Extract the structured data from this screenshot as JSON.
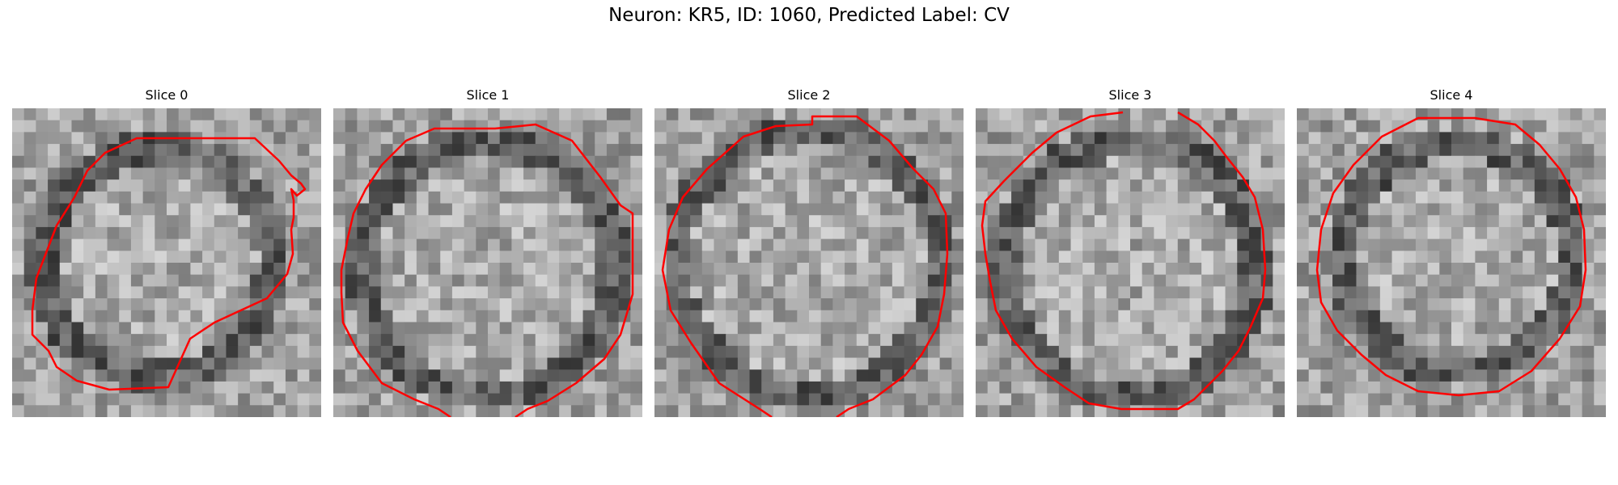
{
  "figure": {
    "title": "Neuron: KR5, ID: 1060, Predicted Label: CV"
  },
  "panels": [
    {
      "title": "Slice 0"
    },
    {
      "title": "Slice 1"
    },
    {
      "title": "Slice 2"
    },
    {
      "title": "Slice 3"
    },
    {
      "title": "Slice 4"
    }
  ],
  "colors": {
    "contour": "#ff0000",
    "background": "#ffffff"
  }
}
